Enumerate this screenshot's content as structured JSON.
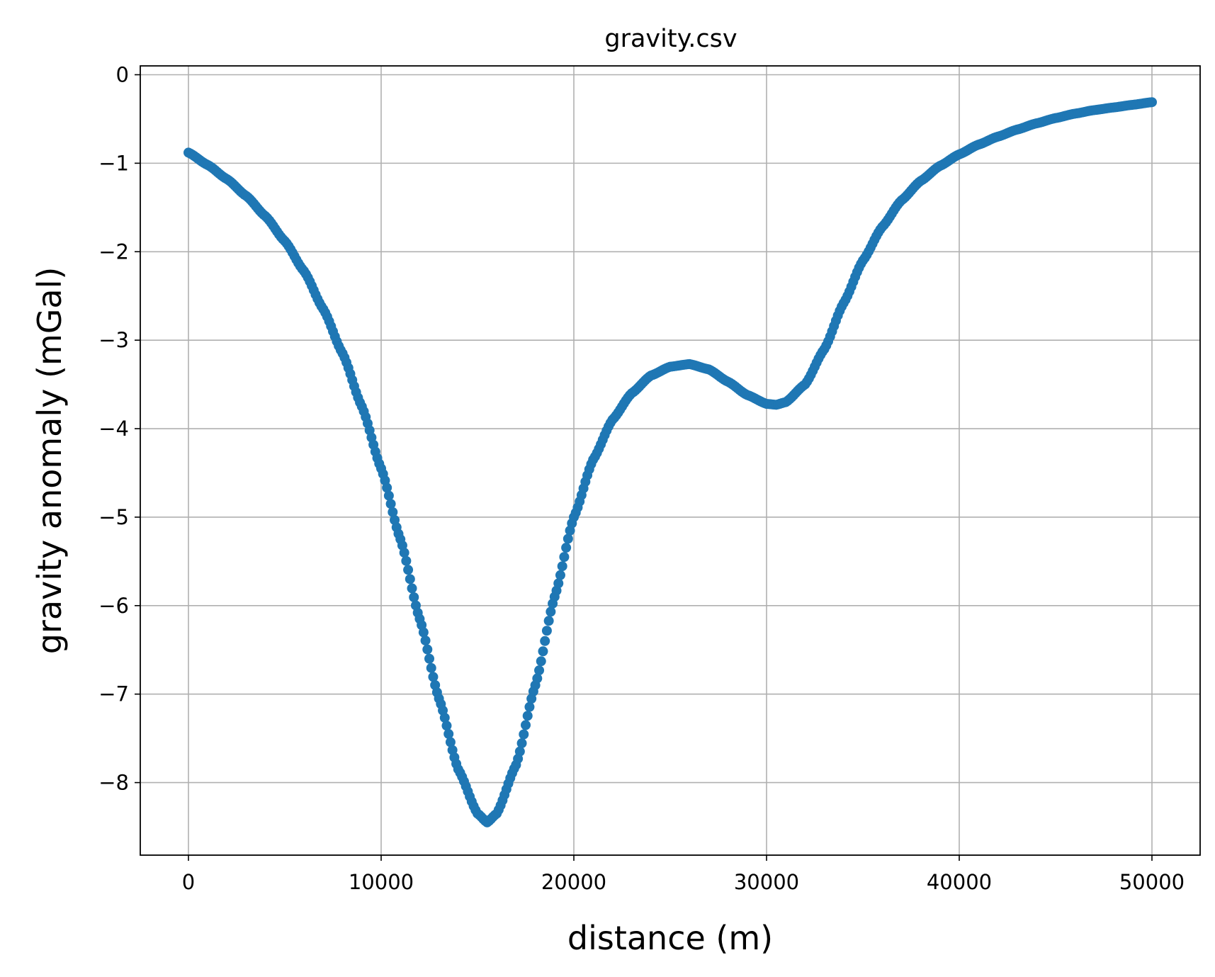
{
  "chart_data": {
    "type": "scatter",
    "title": "gravity.csv",
    "xlabel": "distance (m)",
    "ylabel": "gravity anomaly (mGal)",
    "xlim": [
      -2500,
      52500
    ],
    "ylim": [
      -8.82,
      0.1
    ],
    "xticks": [
      0,
      10000,
      20000,
      30000,
      40000,
      50000
    ],
    "xtick_labels": [
      "0",
      "10000",
      "20000",
      "30000",
      "40000",
      "50000"
    ],
    "yticks": [
      0,
      -1,
      -2,
      -3,
      -4,
      -5,
      -6,
      -7,
      -8
    ],
    "ytick_labels": [
      "0",
      "−1",
      "−2",
      "−3",
      "−4",
      "−5",
      "−6",
      "−7",
      "−8"
    ],
    "grid": true,
    "marker_color": "#1f77b4",
    "series": [
      {
        "x": [
          0,
          1000,
          2000,
          3000,
          4000,
          5000,
          6000,
          7000,
          8000,
          9000,
          10000,
          11000,
          12000,
          13000,
          14000,
          15000,
          15500,
          16000,
          17000,
          18000,
          19000,
          20000,
          21000,
          22000,
          23000,
          24000,
          25000,
          26000,
          27000,
          28000,
          29000,
          30000,
          30500,
          31000,
          32000,
          33000,
          34000,
          35000,
          36000,
          37000,
          38000,
          39000,
          40000,
          41000,
          42000,
          43000,
          44000,
          45000,
          46000,
          47000,
          48000,
          49000,
          50000
        ],
        "y": [
          -0.88,
          -1.02,
          -1.18,
          -1.37,
          -1.6,
          -1.88,
          -2.22,
          -2.65,
          -3.15,
          -3.75,
          -4.45,
          -5.25,
          -6.15,
          -7.05,
          -7.85,
          -8.35,
          -8.45,
          -8.35,
          -7.8,
          -6.9,
          -5.9,
          -5.0,
          -4.35,
          -3.9,
          -3.6,
          -3.4,
          -3.3,
          -3.27,
          -3.33,
          -3.47,
          -3.62,
          -3.72,
          -3.73,
          -3.7,
          -3.5,
          -3.1,
          -2.58,
          -2.1,
          -1.72,
          -1.42,
          -1.2,
          -1.03,
          -0.9,
          -0.79,
          -0.7,
          -0.62,
          -0.55,
          -0.49,
          -0.44,
          -0.4,
          -0.37,
          -0.34,
          -0.31
        ]
      }
    ]
  }
}
